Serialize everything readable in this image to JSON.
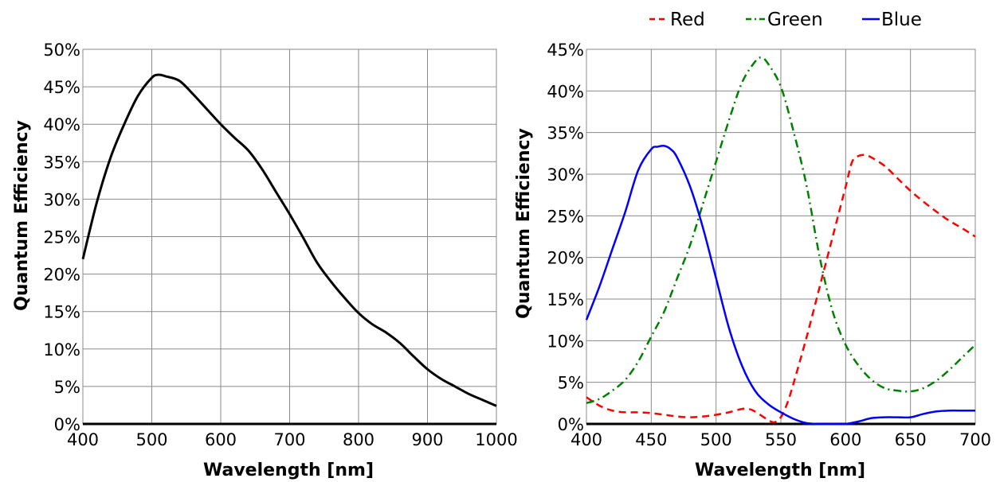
{
  "chart_data": [
    {
      "type": "line",
      "xlabel": "Wavelength [nm]",
      "ylabel": "Quantum Efficiency",
      "xlim": [
        400,
        1000
      ],
      "ylim": [
        0,
        50
      ],
      "x_ticks": [
        "400",
        "500",
        "600",
        "700",
        "800",
        "900",
        "1000"
      ],
      "y_ticks": [
        "0%",
        "5%",
        "10%",
        "15%",
        "20%",
        "25%",
        "30%",
        "35%",
        "40%",
        "45%",
        "50%"
      ],
      "grid": true,
      "series": [
        {
          "color": "#000000",
          "dash": "solid",
          "x": [
            400,
            420,
            440,
            460,
            480,
            500,
            510,
            520,
            540,
            560,
            580,
            600,
            620,
            640,
            660,
            680,
            700,
            720,
            740,
            760,
            780,
            800,
            820,
            840,
            860,
            880,
            900,
            920,
            940,
            960,
            980,
            1000
          ],
          "y": [
            22,
            29.5,
            35.5,
            40,
            43.8,
            46.2,
            46.6,
            46.4,
            45.8,
            44,
            42,
            40,
            38.2,
            36.5,
            34,
            31,
            28,
            24.8,
            21.5,
            19,
            16.8,
            14.8,
            13.3,
            12.2,
            10.8,
            9,
            7.3,
            6,
            5,
            4,
            3.2,
            2.4
          ]
        }
      ]
    },
    {
      "type": "line",
      "xlabel": "Wavelength [nm]",
      "ylabel": "Quantum Efficiency",
      "xlim": [
        400,
        700
      ],
      "ylim": [
        0,
        45
      ],
      "x_ticks": [
        "400",
        "450",
        "500",
        "550",
        "600",
        "650",
        "700"
      ],
      "y_ticks": [
        "0%",
        "5%",
        "10%",
        "15%",
        "20%",
        "25%",
        "30%",
        "35%",
        "40%",
        "45%"
      ],
      "grid": true,
      "legend_position": "top",
      "series": [
        {
          "name": "Red",
          "color": "#ff0000",
          "dash": "dashed",
          "x": [
            400,
            410,
            420,
            430,
            440,
            450,
            460,
            470,
            480,
            490,
            500,
            510,
            520,
            525,
            530,
            540,
            545,
            550,
            555,
            560,
            570,
            580,
            590,
            600,
            605,
            610,
            615,
            620,
            630,
            640,
            650,
            660,
            670,
            680,
            690,
            700
          ],
          "y": [
            3.2,
            2.2,
            1.6,
            1.4,
            1.4,
            1.3,
            1.1,
            0.9,
            0.8,
            0.9,
            1.1,
            1.4,
            1.8,
            1.8,
            1.5,
            0.5,
            0.2,
            0.8,
            2.5,
            5,
            10.5,
            16.5,
            22.5,
            28.5,
            31.5,
            32.2,
            32.3,
            32,
            31,
            29.5,
            28,
            26.7,
            25.5,
            24.4,
            23.5,
            22.5
          ]
        },
        {
          "name": "Green",
          "color": "#008000",
          "dash": "dashdot",
          "x": [
            400,
            410,
            420,
            430,
            440,
            450,
            460,
            470,
            480,
            490,
            500,
            510,
            520,
            530,
            535,
            540,
            550,
            560,
            570,
            580,
            590,
            600,
            610,
            620,
            630,
            640,
            650,
            660,
            670,
            680,
            690,
            700
          ],
          "y": [
            2.5,
            3,
            4,
            5.3,
            7.5,
            10.5,
            13.5,
            17.5,
            21.5,
            26.5,
            31.5,
            36.5,
            41,
            43.5,
            44,
            43.3,
            40.5,
            35,
            28.5,
            20,
            13.5,
            9.5,
            7,
            5.3,
            4.3,
            4,
            3.9,
            4.3,
            5.2,
            6.5,
            8,
            9.5
          ]
        },
        {
          "name": "Blue",
          "color": "#0000ff",
          "dash": "solid",
          "x": [
            400,
            410,
            420,
            430,
            440,
            450,
            455,
            460,
            465,
            470,
            480,
            490,
            500,
            510,
            520,
            530,
            540,
            550,
            560,
            570,
            580,
            590,
            600,
            610,
            620,
            630,
            640,
            650,
            660,
            670,
            680,
            690,
            700
          ],
          "y": [
            12.5,
            16.5,
            21,
            25.5,
            30.5,
            33,
            33.3,
            33.4,
            33,
            32,
            28.5,
            23.5,
            17.5,
            11.5,
            7,
            4,
            2.4,
            1.4,
            0.6,
            0.1,
            0,
            0,
            0,
            0.3,
            0.7,
            0.8,
            0.8,
            0.8,
            1.2,
            1.5,
            1.6,
            1.6,
            1.6
          ]
        }
      ]
    }
  ]
}
